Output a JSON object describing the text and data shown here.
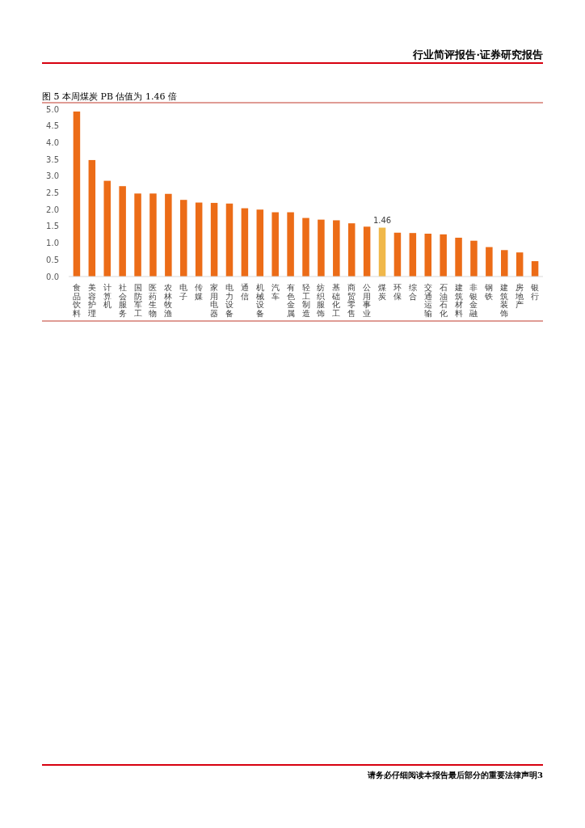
{
  "chart_data": {
    "type": "bar",
    "title": "图 5 本周煤炭 PB 估值为 1.46 倍",
    "annotations": [
      "行业简评报告·证券研究报告",
      "请务必仔细阅读本报告最后部分的重要法律声明3"
    ],
    "categories": [
      "食品饮料",
      "美容护理",
      "计算机",
      "社会服务",
      "国防军工",
      "医药生物",
      "农林牧渔",
      "电子",
      "传媒",
      "家用电器",
      "电力设备",
      "通信",
      "机械设备",
      "汽车",
      "有色金属",
      "轻工制造",
      "纺织服饰",
      "基础化工",
      "商贸零售",
      "公用事业",
      "煤炭",
      "环保",
      "综合",
      "交通运输",
      "石油石化",
      "建筑材料",
      "非银金融",
      "钢铁",
      "建筑装饰",
      "房地产",
      "银行"
    ],
    "values": [
      4.93,
      3.48,
      2.86,
      2.7,
      2.48,
      2.48,
      2.47,
      2.29,
      2.21,
      2.2,
      2.18,
      2.04,
      2.0,
      1.92,
      1.92,
      1.75,
      1.7,
      1.68,
      1.59,
      1.49,
      1.46,
      1.31,
      1.3,
      1.28,
      1.26,
      1.16,
      1.07,
      0.88,
      0.79,
      0.72,
      0.46
    ],
    "colors": [
      "#ec6c17",
      "#ec6c17",
      "#ec6c17",
      "#ec6c17",
      "#ec6c17",
      "#ec6c17",
      "#ec6c17",
      "#ec6c17",
      "#ec6c17",
      "#ec6c17",
      "#ec6c17",
      "#ec6c17",
      "#ec6c17",
      "#ec6c17",
      "#ec6c17",
      "#ec6c17",
      "#ec6c17",
      "#ec6c17",
      "#ec6c17",
      "#ec6c17",
      "#f0b84a",
      "#ec6c17",
      "#ec6c17",
      "#ec6c17",
      "#ec6c17",
      "#ec6c17",
      "#ec6c17",
      "#ec6c17",
      "#ec6c17",
      "#ec6c17",
      "#ec6c17"
    ],
    "value_labels": [
      null,
      null,
      null,
      null,
      null,
      null,
      null,
      null,
      null,
      null,
      null,
      null,
      null,
      null,
      null,
      null,
      null,
      null,
      null,
      null,
      "1.46",
      null,
      null,
      null,
      null,
      null,
      null,
      null,
      null,
      null,
      null
    ],
    "ylim": [
      0,
      5
    ],
    "yticks": [
      {
        "value": 0,
        "label": "0.0"
      },
      {
        "value": 0.5,
        "label": "0.5"
      },
      {
        "value": 1,
        "label": "1.0"
      },
      {
        "value": 1.5,
        "label": "1.5"
      },
      {
        "value": 2,
        "label": "2.0"
      },
      {
        "value": 2.5,
        "label": "2.5"
      },
      {
        "value": 3,
        "label": "3.0"
      },
      {
        "value": 3.5,
        "label": "3.5"
      },
      {
        "value": 4,
        "label": "4.0"
      },
      {
        "value": 4.5,
        "label": "4.5"
      },
      {
        "value": 5,
        "label": "5.0"
      }
    ],
    "grid": false
  }
}
